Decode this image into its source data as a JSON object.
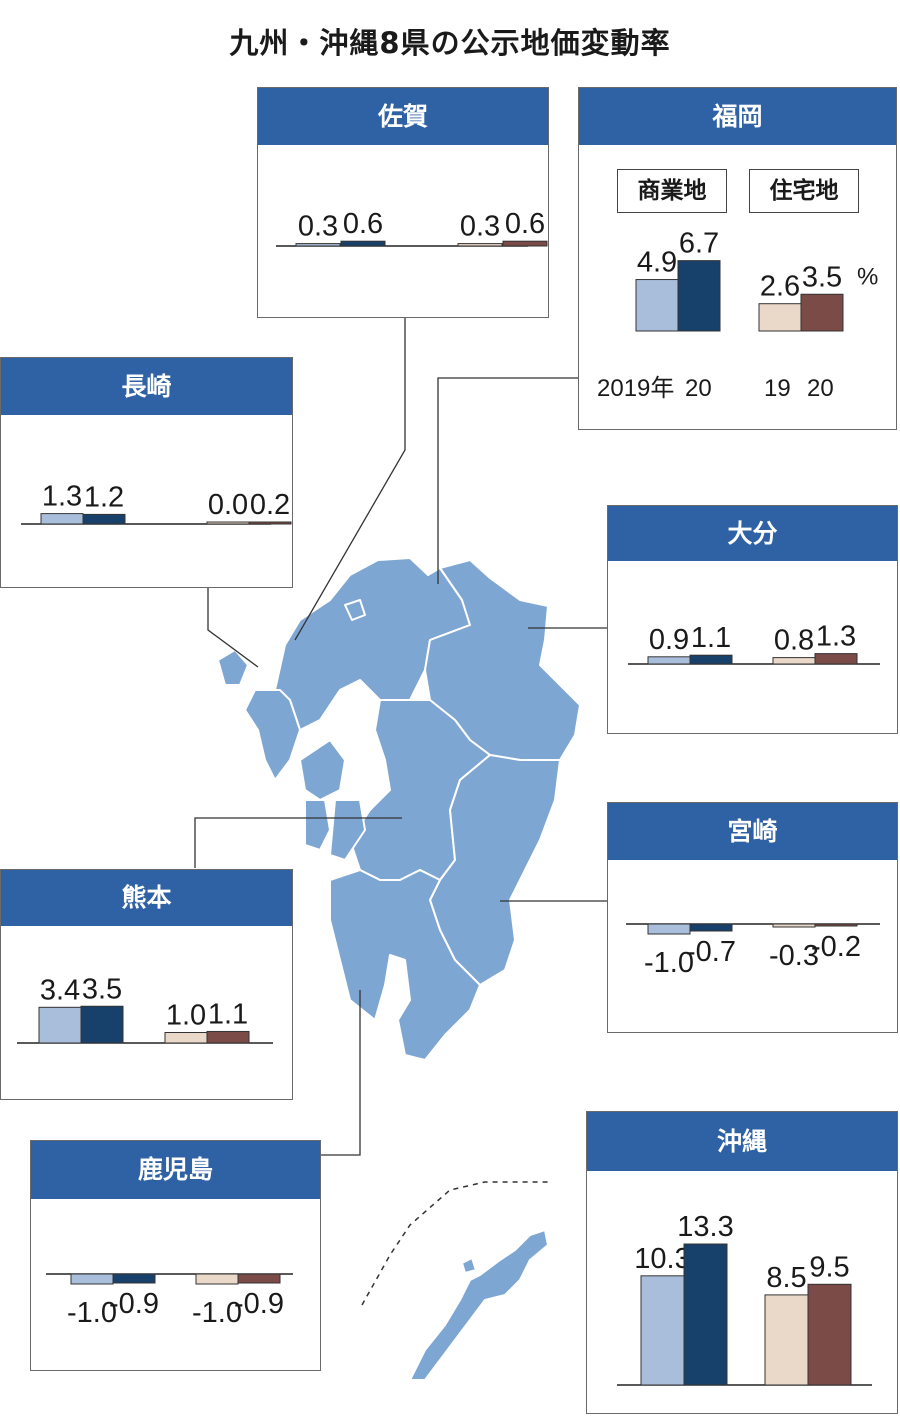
{
  "title": "九州・沖縄8県の公示地価変動率",
  "colors": {
    "commercial_2019": "#a9bedb",
    "commercial_2020": "#17406b",
    "residential_2019": "#ead8c8",
    "residential_2020": "#7b4b47",
    "header": "#2f62a5",
    "map": "#7ea6d3"
  },
  "legend": {
    "commercial": "商業地",
    "residential": "住宅地"
  },
  "axis_note": {
    "year_first": "2019年",
    "year_second": "20",
    "year_first_short": "19",
    "unit": "%"
  },
  "chart_data": [
    {
      "type": "bar",
      "prefecture": "佐賀",
      "categories": [
        "商業地 2019",
        "商業地 2020",
        "住宅地 2019",
        "住宅地 2020"
      ],
      "values": [
        0.3,
        0.6,
        0.3,
        0.6
      ],
      "labels": [
        "0.3",
        "0.6",
        "0.3",
        "0.6"
      ]
    },
    {
      "type": "bar",
      "prefecture": "福岡",
      "categories": [
        "商業地 2019",
        "商業地 2020",
        "住宅地 2019",
        "住宅地 2020"
      ],
      "values": [
        4.9,
        6.7,
        2.6,
        3.5
      ],
      "labels": [
        "4.9",
        "6.7",
        "2.6",
        "3.5"
      ]
    },
    {
      "type": "bar",
      "prefecture": "長崎",
      "categories": [
        "商業地 2019",
        "商業地 2020",
        "住宅地 2019",
        "住宅地 2020"
      ],
      "values": [
        1.3,
        1.2,
        0.0,
        0.2
      ],
      "labels": [
        "1.3",
        "1.2",
        "0.0",
        "0.2"
      ]
    },
    {
      "type": "bar",
      "prefecture": "大分",
      "categories": [
        "商業地 2019",
        "商業地 2020",
        "住宅地 2019",
        "住宅地 2020"
      ],
      "values": [
        0.9,
        1.1,
        0.8,
        1.3
      ],
      "labels": [
        "0.9",
        "1.1",
        "0.8",
        "1.3"
      ]
    },
    {
      "type": "bar",
      "prefecture": "宮崎",
      "categories": [
        "商業地 2019",
        "商業地 2020",
        "住宅地 2019",
        "住宅地 2020"
      ],
      "values": [
        -1.0,
        -0.7,
        -0.3,
        -0.2
      ],
      "labels": [
        "-1.0",
        "-0.7",
        "-0.3",
        "-0.2"
      ]
    },
    {
      "type": "bar",
      "prefecture": "熊本",
      "categories": [
        "商業地 2019",
        "商業地 2020",
        "住宅地 2019",
        "住宅地 2020"
      ],
      "values": [
        3.4,
        3.5,
        1.0,
        1.1
      ],
      "labels": [
        "3.4",
        "3.5",
        "1.0",
        "1.1"
      ]
    },
    {
      "type": "bar",
      "prefecture": "鹿児島",
      "categories": [
        "商業地 2019",
        "商業地 2020",
        "住宅地 2019",
        "住宅地 2020"
      ],
      "values": [
        -1.0,
        -0.9,
        -1.0,
        -0.9
      ],
      "labels": [
        "-1.0",
        "-0.9",
        "-1.0",
        "-0.9"
      ]
    },
    {
      "type": "bar",
      "prefecture": "沖縄",
      "categories": [
        "商業地 2019",
        "商業地 2020",
        "住宅地 2019",
        "住宅地 2020"
      ],
      "values": [
        10.3,
        13.3,
        8.5,
        9.5
      ],
      "labels": [
        "10.3",
        "13.3",
        "8.5",
        "9.5"
      ]
    }
  ]
}
